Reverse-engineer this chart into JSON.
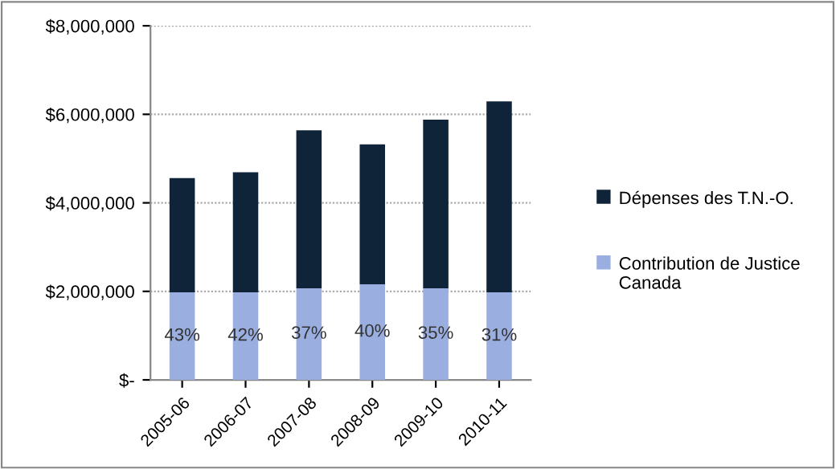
{
  "chart_data": {
    "type": "bar",
    "stacked": true,
    "categories": [
      "2005-06",
      "2006-07",
      "2007-08",
      "2008-09",
      "2009-10",
      "2010-11"
    ],
    "series": [
      {
        "name": "Contribution de Justice Canada",
        "color": "#9aaee0",
        "values": [
          1980000,
          1980000,
          2070000,
          2160000,
          2070000,
          1980000
        ]
      },
      {
        "name": "Dépenses des T.N.-O.",
        "color": "#0f2438",
        "values": [
          2580000,
          2710000,
          3570000,
          3160000,
          3810000,
          4310000
        ]
      }
    ],
    "annotations": [
      "43%",
      "42%",
      "37%",
      "40%",
      "35%",
      "31%"
    ],
    "ylim": [
      0,
      8000000
    ],
    "yticks": [
      {
        "value": 0,
        "label": "$-"
      },
      {
        "value": 2000000,
        "label": "$2,000,000"
      },
      {
        "value": 4000000,
        "label": "$4,000,000"
      },
      {
        "value": 6000000,
        "label": "$6,000,000"
      },
      {
        "value": 8000000,
        "label": "$8,000,000"
      }
    ],
    "grid": "y",
    "legend": "right"
  }
}
